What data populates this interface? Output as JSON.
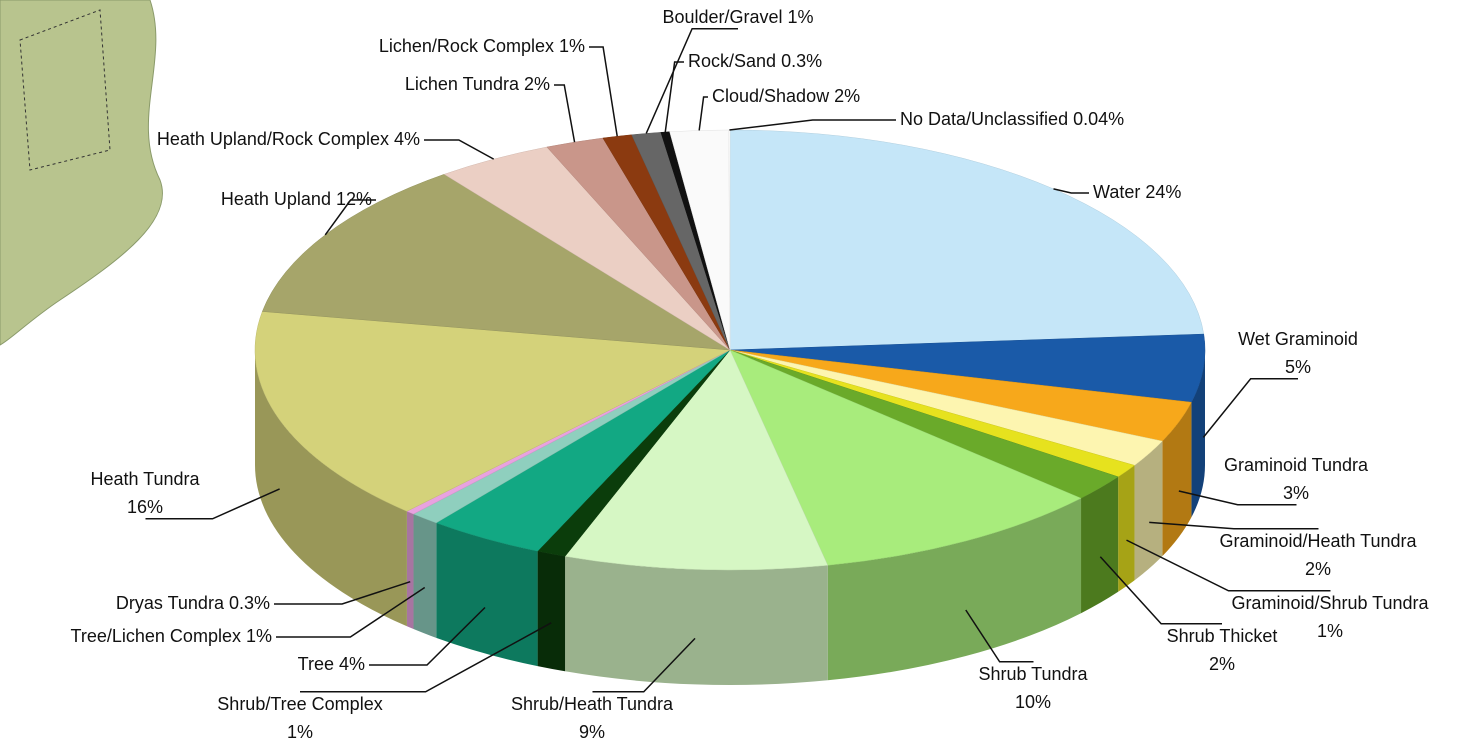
{
  "chart_data": {
    "type": "pie",
    "categories": [
      "Water",
      "Wet Graminoid",
      "Graminoid Tundra",
      "Graminoid/Heath Tundra",
      "Graminoid/Shrub Tundra",
      "Shrub Thicket",
      "Shrub Tundra",
      "Shrub/Heath Tundra",
      "Shrub/Tree Complex",
      "Tree",
      "Tree/Lichen Complex",
      "Dryas Tundra",
      "Heath Tundra",
      "Heath Upland",
      "Heath Upland/Rock Complex",
      "Lichen Tundra",
      "Lichen/Rock Complex",
      "Boulder/Gravel",
      "Rock/Sand",
      "Cloud/Shadow",
      "No Data/Unclassified"
    ],
    "values": [
      24,
      5,
      3,
      2,
      1,
      2,
      10,
      9,
      1,
      4,
      1,
      0.3,
      16,
      12,
      4,
      2,
      1,
      1,
      0.3,
      2,
      0.04
    ],
    "value_labels": [
      "24%",
      "5%",
      "3%",
      "2%",
      "1%",
      "2%",
      "10%",
      "9%",
      "1%",
      "4%",
      "1%",
      "0.3%",
      "16%",
      "12%",
      "4%",
      "2%",
      "1%",
      "1%",
      "0.3%",
      "2%",
      "0.04%"
    ],
    "colors": [
      "#c5e6f8",
      "#1a5aa8",
      "#f7a81b",
      "#fdf5b0",
      "#e6e21e",
      "#6aaa2a",
      "#a8ec7c",
      "#d6f7c4",
      "#0b3d0b",
      "#12a883",
      "#8fcfbe",
      "#e8a2e0",
      "#d4d27a",
      "#a6a56a",
      "#ebcfc4",
      "#c9968a",
      "#8b3a10",
      "#666666",
      "#111111",
      "#fafafa",
      "#ffffff"
    ]
  }
}
